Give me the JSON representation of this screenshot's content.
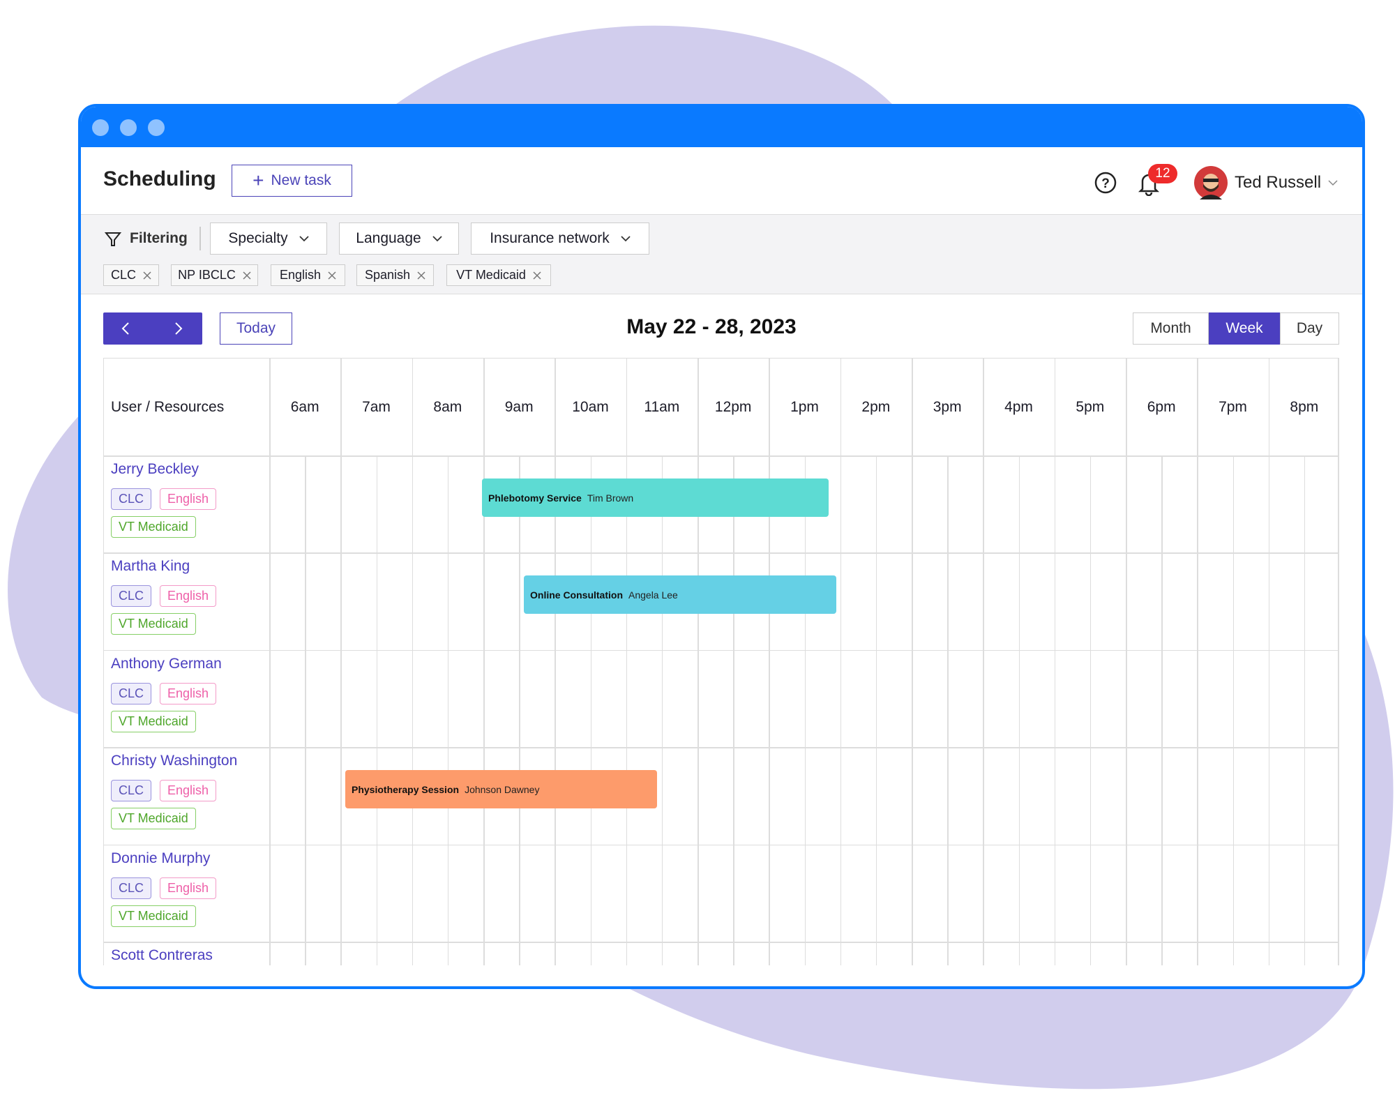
{
  "header": {
    "title": "Scheduling",
    "new_task": "New task",
    "notifications": "12",
    "user": "Ted Russell"
  },
  "filters": {
    "label": "Filtering",
    "dropdowns": [
      "Specialty",
      "Language",
      "Insurance network"
    ],
    "chips": [
      "CLC",
      "NP IBCLC",
      "English",
      "Spanish",
      "VT Medicaid"
    ]
  },
  "calendar": {
    "today": "Today",
    "range": "May 22 - 28, 2023",
    "views": [
      "Month",
      "Week",
      "Day"
    ]
  },
  "grid": {
    "first_header": "User / Resources",
    "hours": [
      "6am",
      "7am",
      "8am",
      "9am",
      "10am",
      "11am",
      "12pm",
      "1pm",
      "2pm",
      "3pm",
      "4pm",
      "5pm",
      "6pm",
      "7pm",
      "8pm"
    ],
    "rows": [
      {
        "name": "Jerry Beckley",
        "tags": [
          "CLC",
          "English",
          "VT Medicaid"
        ]
      },
      {
        "name": "Martha King",
        "tags": [
          "CLC",
          "English",
          "VT Medicaid"
        ]
      },
      {
        "name": "Anthony German",
        "tags": [
          "CLC",
          "English",
          "VT Medicaid"
        ]
      },
      {
        "name": "Christy Washington",
        "tags": [
          "CLC",
          "English",
          "VT Medicaid"
        ]
      },
      {
        "name": "Donnie Murphy",
        "tags": [
          "CLC",
          "English",
          "VT Medicaid"
        ]
      },
      {
        "name": "Scott Contreras"
      }
    ],
    "events": [
      {
        "title": "Phlebotomy Service",
        "person": "Tim Brown"
      },
      {
        "title": "Online Consultation",
        "person": "Angela Lee"
      },
      {
        "title": "Physiotherapy Session",
        "person": "Johnson Dawney"
      }
    ]
  }
}
